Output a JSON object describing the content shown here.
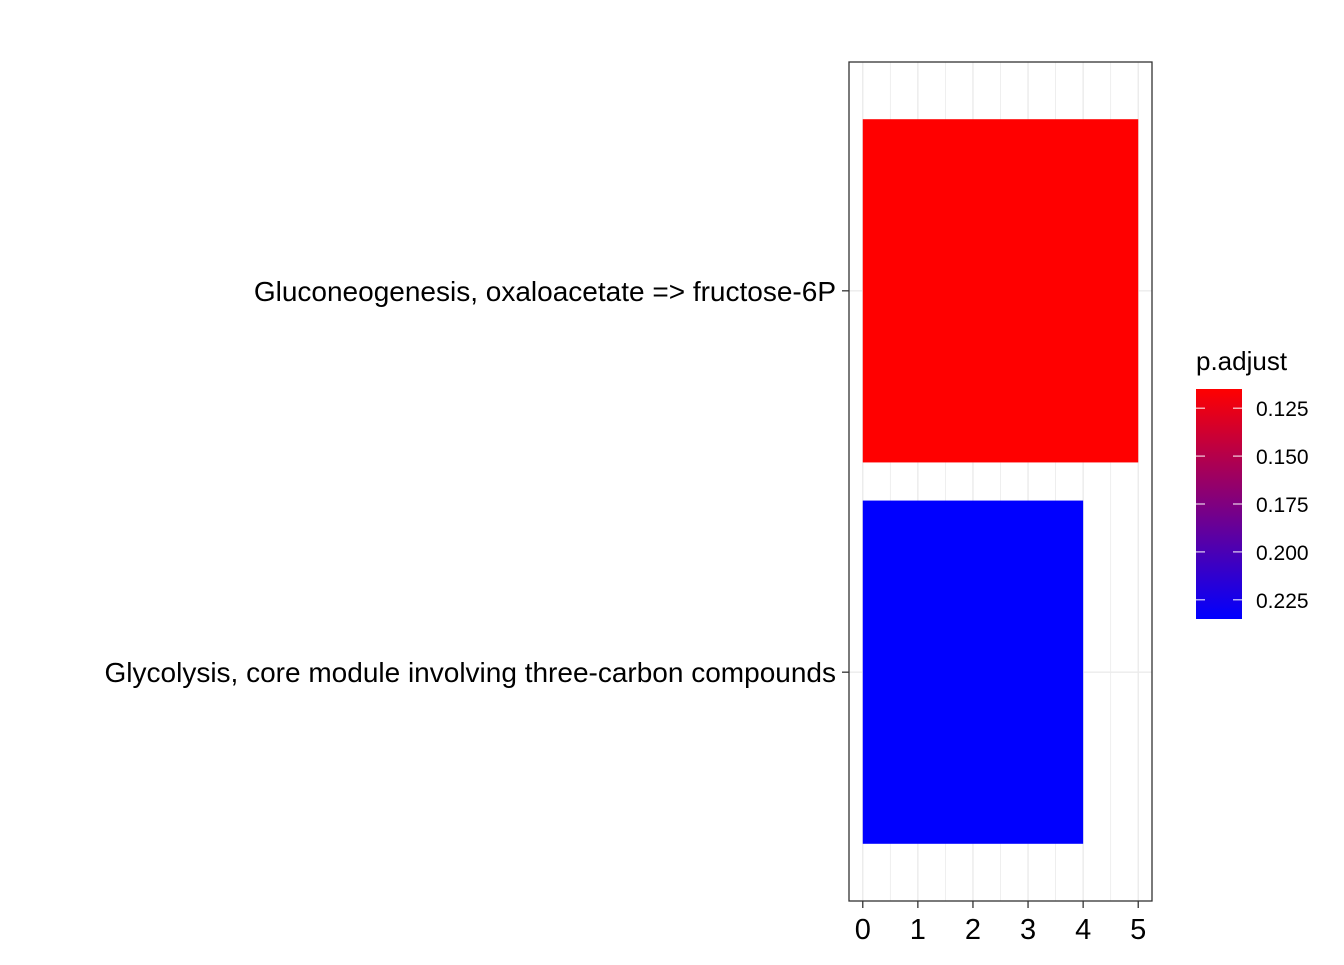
{
  "chart_data": {
    "type": "bar",
    "orientation": "horizontal",
    "categories": [
      "Gluconeogenesis, oxaloacetate => fructose-6P",
      "Glycolysis, core module involving three-carbon compounds"
    ],
    "values": [
      5,
      4
    ],
    "p_adjust": [
      0.115,
      0.235
    ],
    "bar_colors": [
      "#FF0000",
      "#0000FF"
    ],
    "xlim": [
      -0.25,
      5.25
    ],
    "x_ticks": [
      "0",
      "1",
      "2",
      "3",
      "4",
      "5"
    ],
    "grid": true,
    "legend": {
      "title": "p.adjust",
      "placement": "right",
      "scale_range": [
        0.115,
        0.235
      ],
      "low_color": "#FF0000",
      "high_color": "#0000FF",
      "ticks": [
        "0.125",
        "0.150",
        "0.175",
        "0.200",
        "0.225"
      ]
    }
  }
}
